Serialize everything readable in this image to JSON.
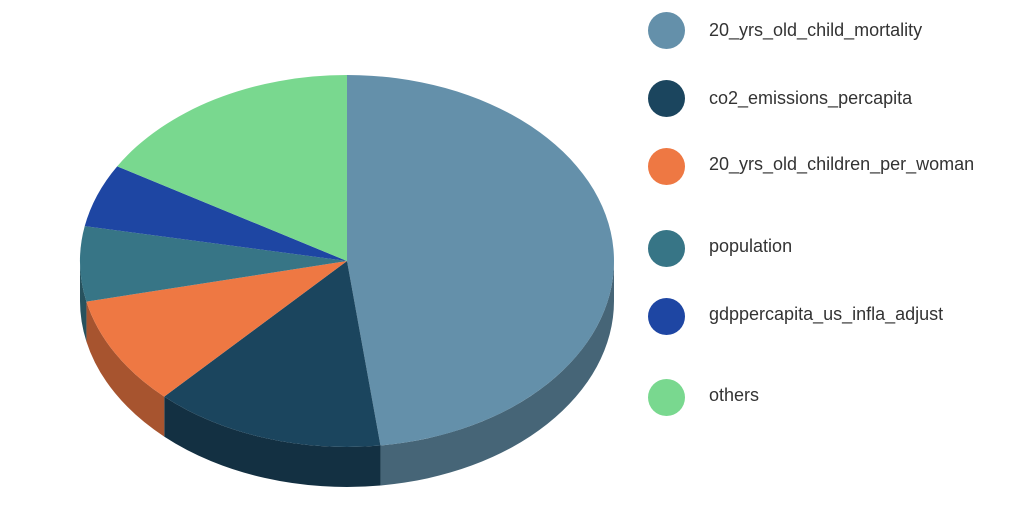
{
  "chart_data": {
    "type": "pie",
    "style": "3d",
    "series": [
      {
        "name": "20_yrs_old_child_mortality",
        "value": 48.0,
        "color": "#6490AA"
      },
      {
        "name": "co2_emissions_percapita",
        "value": 14.0,
        "color": "#1B455E"
      },
      {
        "name": "20_yrs_old_children_per_woman",
        "value": 9.5,
        "color": "#EE7843"
      },
      {
        "name": "population",
        "value": 6.5,
        "color": "#377586"
      },
      {
        "name": "gdppercapita_us_infla_adjust",
        "value": 5.5,
        "color": "#1E46A3"
      },
      {
        "name": "others",
        "value": 16.5,
        "color": "#79D88F"
      }
    ],
    "legend_position": "right"
  }
}
